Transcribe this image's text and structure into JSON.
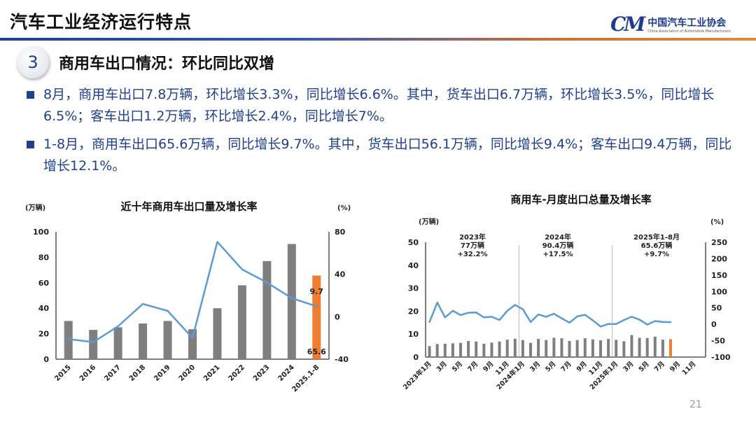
{
  "header": {
    "title": "汽车工业经济运行特点",
    "logo": {
      "mark": "CM",
      "name_cn": "中国汽车工业协会",
      "name_en": "China Association of Automobile Manufacturers"
    }
  },
  "section": {
    "number": "3",
    "title": "商用车出口情况：环比同比双增"
  },
  "bullets": [
    "8月，商用车出口7.8万辆，环比增长3.3%，同比增长6.6%。其中，货车出口6.7万辆，环比增长3.5%，同比增长6.5%；客车出口1.2万辆，环比增长2.4%，同比增长7%。",
    "1-8月，商用车出口65.6万辆，同比增长9.7%。其中，货车出口56.1万辆，同比增长9.4%；客车出口9.4万辆，同比增长12.1%。"
  ],
  "colors": {
    "brand": "#1f3f8f",
    "bar": "#7f7f7f",
    "highlight_bar": "#ed7d31",
    "line": "#5b9bd5"
  },
  "chart_data": [
    {
      "type": "bar+line",
      "title": "近十年商用车出口量及增长率",
      "ylabel": "(万辆)",
      "y2label": "(%)",
      "ylim": [
        0,
        100
      ],
      "yticks": [
        0,
        20,
        40,
        60,
        80,
        100
      ],
      "y2lim": [
        -40,
        80
      ],
      "y2ticks": [
        -40,
        0,
        40,
        80
      ],
      "categories": [
        "2015",
        "2016",
        "2017",
        "2018",
        "2019",
        "2020",
        "2021",
        "2022",
        "2023",
        "2024",
        "2025.1-8"
      ],
      "bars": [
        30,
        23,
        25,
        28,
        30,
        23.5,
        40,
        58,
        77,
        90.4,
        65.6
      ],
      "highlight_index": 10,
      "line": [
        -21,
        -24,
        -9,
        12,
        5.5,
        -20,
        70.5,
        44.5,
        32.2,
        17.5,
        9.7
      ],
      "data_labels": {
        "bar_last": "65.6",
        "line_last": "9.7"
      },
      "grid": false
    },
    {
      "type": "bar+line",
      "title": "商用车-月度出口总量及增长率",
      "ylabel": "(万辆)",
      "y2label": "(%)",
      "ylim": [
        0,
        50
      ],
      "yticks": [
        0,
        10,
        20,
        30,
        40,
        50
      ],
      "y2lim": [
        -100,
        250
      ],
      "y2ticks": [
        -100,
        -50,
        0,
        50,
        100,
        150,
        200,
        250
      ],
      "x_labels": [
        "2023年1月",
        "3月",
        "5月",
        "7月",
        "9月",
        "11月",
        "2024年1月",
        "3月",
        "5月",
        "7月",
        "9月",
        "11月",
        "2025年1月",
        "3月",
        "5月",
        "7月",
        "9月",
        "11月"
      ],
      "bars": [
        4.8,
        5.7,
        5.8,
        6.0,
        6.2,
        7.0,
        6.8,
        5.8,
        6.3,
        6.8,
        7.6,
        8.0,
        7.4,
        6.2,
        7.9,
        7.4,
        8.4,
        8.2,
        7.0,
        7.4,
        8.2,
        7.7,
        7.3,
        7.9,
        7.5,
        6.9,
        9.6,
        8.4,
        8.3,
        8.9,
        7.6,
        7.8
      ],
      "highlight_index": 31,
      "line": [
        7,
        66,
        21,
        41,
        28,
        35,
        36,
        21,
        23,
        13,
        41,
        59,
        46,
        7,
        30,
        23,
        32,
        18,
        5,
        24,
        29,
        12,
        -7,
        1,
        1,
        13,
        23,
        14,
        -1,
        10,
        7,
        6.6
      ],
      "annotations": [
        {
          "lines": [
            "2023年",
            "77万辆",
            "+32.2%"
          ]
        },
        {
          "lines": [
            "2024年",
            "90.4万辆",
            "+17.5%"
          ]
        },
        {
          "lines": [
            "2025年1-8月",
            "65.6万辆",
            "+9.7%"
          ]
        }
      ],
      "grid": false
    }
  ],
  "page_number": "21"
}
